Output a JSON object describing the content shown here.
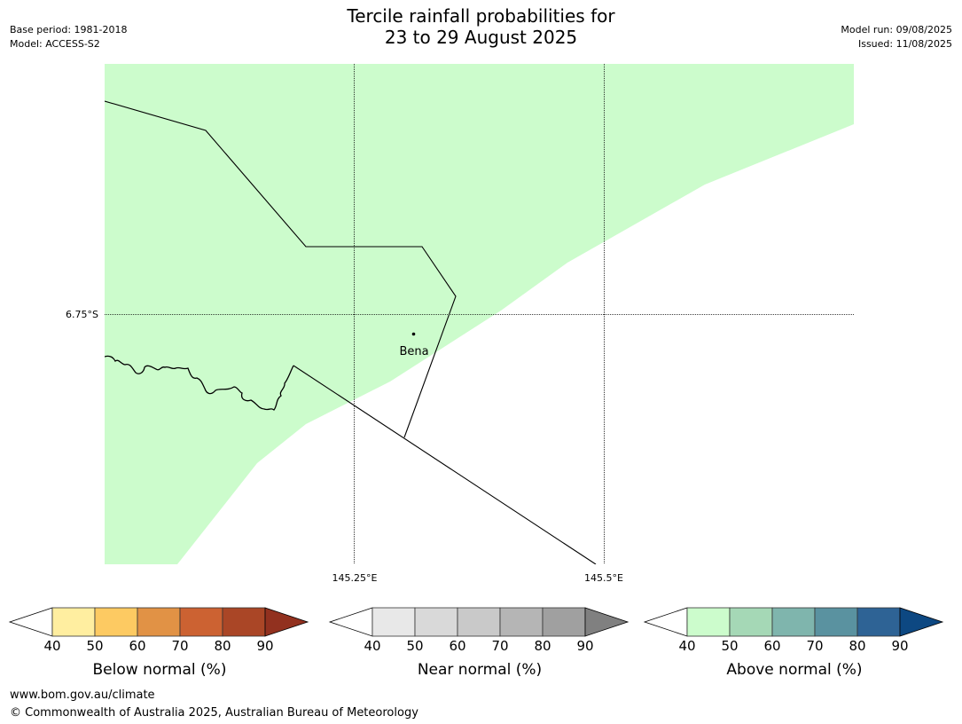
{
  "header": {
    "title_line1": "Tercile rainfall probabilities for",
    "title_line2": "23 to 29 August 2025",
    "base_period": "Base period: 1981-2018",
    "model": "Model: ACCESS-S2",
    "model_run": "Model run: 09/08/2025",
    "issued": "Issued: 11/08/2025"
  },
  "map": {
    "fill_color": "#ccfccc",
    "axis_labels": {
      "lat": "6.75°S",
      "lon1": "145.25°E",
      "lon2": "145.5°E"
    },
    "place": {
      "name": "Bena"
    }
  },
  "colorbars": [
    {
      "label": "Below normal (%)",
      "ticks": [
        "40",
        "50",
        "60",
        "70",
        "80",
        "90"
      ],
      "colors": [
        "#ffeea0",
        "#fdca62",
        "#e19245",
        "#cc6232",
        "#aa4626",
        "#92311f"
      ]
    },
    {
      "label": "Near normal (%)",
      "ticks": [
        "40",
        "50",
        "60",
        "70",
        "80",
        "90"
      ],
      "colors": [
        "#e8e8e8",
        "#d9d9d9",
        "#c9c9c9",
        "#b5b5b5",
        "#a0a0a0",
        "#808080"
      ]
    },
    {
      "label": "Above normal (%)",
      "ticks": [
        "40",
        "50",
        "60",
        "70",
        "80",
        "90"
      ],
      "colors": [
        "#ccfccc",
        "#a5d8b6",
        "#7fb5ad",
        "#5a92a0",
        "#2e6395",
        "#0d4882"
      ]
    }
  ],
  "footer": {
    "url": "www.bom.gov.au/climate",
    "copyright": "© Commonwealth of Australia 2025, Australian Bureau of Meteorology"
  }
}
